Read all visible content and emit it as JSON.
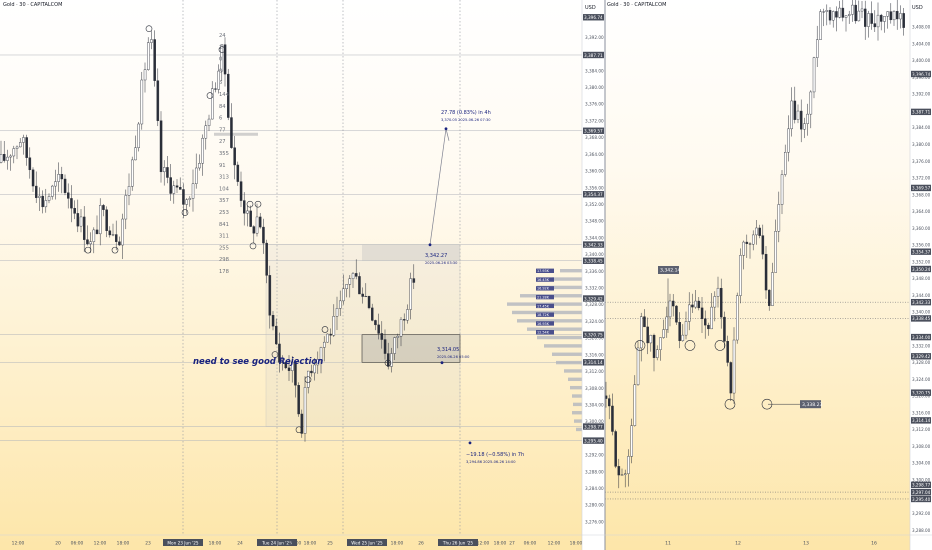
{
  "left_panel": {
    "header": "Gold · 30 · CAPITALCOM",
    "currency": "USD",
    "annotation_text": "need to see good Rejection",
    "price_axis": [
      "3,396.74",
      "3,392.00",
      "3,387.71",
      "3,384.00",
      "3,380.00",
      "3,376.00",
      "3,372.00",
      "3,369.57",
      "3,368.00",
      "3,364.00",
      "3,360.00",
      "3,356.00",
      "3,354.37",
      "3,352.00",
      "3,348.00",
      "3,344.00",
      "3,342.33",
      "3,340.00",
      "3,338.45",
      "3,336.00",
      "3,332.00",
      "3,329.42",
      "3,328.00",
      "3,324.00",
      "3,320.75",
      "3,320.00",
      "3,316.00",
      "3,314.14",
      "3,312.00",
      "3,308.00",
      "3,304.00",
      "3,300.00",
      "3,298.77",
      "3,295.40",
      "3,292.00",
      "3,288.00",
      "3,284.00",
      "3,280.00",
      "3,276.00"
    ],
    "time_axis": [
      "12:00",
      "20",
      "06:00",
      "12:00",
      "18:00",
      "23",
      "Mon 23 Jun '25",
      "18:00",
      "24",
      "Tue 24 Jun '25",
      "15:00",
      "18:00",
      "25",
      "Wed 25 Jun '25",
      "18:00",
      "26",
      "Thu 26 Jun '25",
      "12:00",
      "18:00",
      "27",
      "06:00",
      "12:00",
      "18:00"
    ],
    "level_labels": [
      "24",
      "2",
      "0",
      "0",
      "5",
      "144",
      "84",
      "6",
      "77",
      "27",
      "355",
      "91",
      "313",
      "104",
      "357",
      "253",
      "841",
      "311",
      "255",
      "298",
      "178"
    ],
    "measure_up": {
      "title": "27.78 (0.83%) in 4h",
      "sub": "3,370.05   2025-06-26 07:30"
    },
    "target_label": {
      "title": "3,342.27",
      "sub": "2025-06-26 03:30"
    },
    "box_label": {
      "title": "3,314.05",
      "sub": "2025-06-26 05:00"
    },
    "measure_down": {
      "title": "−19.18 (−0.58%) in 7h",
      "sub": "3,294.86   2025-06-26 14:00"
    },
    "volume_profile_labels": [
      "17.93K",
      "16.43K",
      "16.92K",
      "21.28K",
      "17.45K",
      "18.72K",
      "16.93K",
      "12.54K"
    ]
  },
  "right_panel": {
    "header": "Gold · 30 · CAPITALCOM",
    "currency": "USD",
    "price_axis": [
      "3,396.74",
      "3,408.00",
      "3,404.00",
      "3,400.00",
      "3,396.00",
      "3,392.00",
      "3,388.00",
      "3,387.71",
      "3,384.00",
      "3,380.00",
      "3,376.00",
      "3,372.00",
      "3,369.57",
      "3,368.00",
      "3,364.00",
      "3,360.00",
      "3,356.00",
      "3,354.37",
      "3,352.00",
      "3,350.24",
      "3,348.00",
      "3,342.33",
      "3,344.00",
      "3,340.00",
      "3,338.45",
      "3,334.00",
      "3,332.00",
      "3,329.42",
      "3,328.00",
      "3,324.00",
      "3,320.75",
      "3,320.00",
      "3,316.00",
      "3,314.14",
      "3,312.00",
      "3,308.00",
      "3,304.00",
      "3,300.00",
      "3,298.77",
      "3,297.04",
      "3,295.40",
      "3,292.00",
      "3,288.00"
    ],
    "time_axis": [
      "11",
      "12",
      "13",
      "16"
    ],
    "callouts": [
      "3,342.14",
      "3,338.23"
    ]
  },
  "chart_data": [
    {
      "type": "candlestick",
      "title": "Gold · 30 · CAPITALCOM",
      "ylabel": "USD",
      "ylim": [
        3274,
        3398
      ],
      "x": [
        "12:00",
        "20",
        "06:00",
        "12:00",
        "18:00",
        "23",
        "Mon 23 Jun '25",
        "18:00",
        "24",
        "Tue 24 Jun '25",
        "15:00",
        "18:00",
        "25",
        "Wed 25 Jun '25",
        "18:00",
        "26",
        "Thu 26 Jun '25",
        "12:00",
        "18:00",
        "27",
        "06:00",
        "12:00",
        "18:00"
      ],
      "projection": {
        "up_target": 3370.05,
        "down_target": 3294.86,
        "start": 3342.27,
        "box_low": 3314.05
      }
    },
    {
      "type": "candlestick",
      "title": "Gold · 30 · CAPITALCOM",
      "ylabel": "USD",
      "ylim": [
        3288,
        3412
      ],
      "x": [
        "11",
        "12",
        "13",
        "16"
      ],
      "levels": [
        3342.14,
        3338.23
      ]
    }
  ],
  "colors": {
    "bg_top": "#ffffff",
    "bg_bottom": "#fde9b3",
    "candle": "#2a2e39",
    "grid": "#b0b3ba",
    "axis_label_bg": "#4a4f5c",
    "zone": "#cfcfcf"
  }
}
